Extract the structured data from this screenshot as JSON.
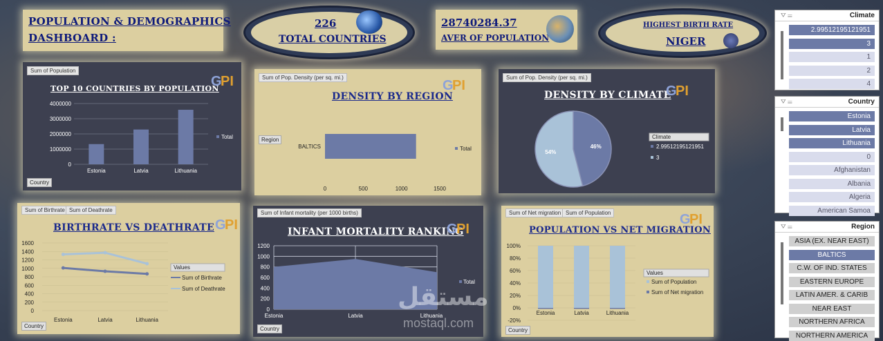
{
  "header": {
    "title_line1": "POPULATION & DEMOGRAPHICS",
    "title_line2": "DASHBOARD :",
    "total_countries_value": "226",
    "total_countries_label": "TOTAL COUNTRIES",
    "avg_population_value": "28740284.37",
    "avg_population_label": "AVER OF POPULATION",
    "highest_birth_label": "HIGHEST BIRTH RATE",
    "highest_birth_value": "NIGER"
  },
  "panels": {
    "top10": {
      "tag": "Sum of Population",
      "title": "TOP 10 COUNTRIES BY POPULATION",
      "filter": "Country"
    },
    "density_region": {
      "tag": "Sum of Pop. Density (per sq. mi.)",
      "title": "DENSITY BY REGION",
      "filter": "Region"
    },
    "density_climate": {
      "tag": "Sum of Pop. Density (per sq. mi.)",
      "title": "DENSITY BY CLIMATE",
      "filter": "Climate"
    },
    "birth_death": {
      "tag1": "Sum of Birthrate",
      "tag2": "Sum of Deathrate",
      "title": "BIRTHRATE VS DEATHRATE",
      "legend_title": "Values",
      "filter": "Country"
    },
    "infant": {
      "tag": "Sum of Infant mortality (per 1000 births)",
      "title": "INFANT MORTALITY RANKING",
      "filter": "Country"
    },
    "migration": {
      "tag1": "Sum of Net migration",
      "tag2": "Sum of Population",
      "title": "POPULATION VS NET MIGRATION",
      "legend_title": "Values",
      "filter": "Country"
    }
  },
  "logo_text": "Global Population Insights",
  "colors": {
    "panel_light": "#dccfa0",
    "panel_dark": "#3d4050",
    "series": "#6c7aa6",
    "series_light": "#a9c2d8",
    "title_blue": "#1b2a8c"
  },
  "chart_data": [
    {
      "id": "top10",
      "type": "bar",
      "categories": [
        "Estonia",
        "Latvia",
        "Lithuania"
      ],
      "series": [
        {
          "name": "Total",
          "values": [
            1330000,
            2290000,
            3590000
          ]
        }
      ],
      "ylim": [
        0,
        4000000
      ],
      "yticks": [
        "4000000",
        "3000000",
        "2000000",
        "1000000",
        "0"
      ],
      "legend": "right"
    },
    {
      "id": "density_region",
      "type": "bar",
      "orientation": "horizontal",
      "categories": [
        "BALTICS"
      ],
      "series": [
        {
          "name": "Total",
          "values": [
            1190
          ]
        }
      ],
      "xlim": [
        0,
        1500
      ],
      "xticks": [
        "0",
        "500",
        "1000",
        "1500"
      ],
      "legend": "right"
    },
    {
      "id": "density_climate",
      "type": "pie",
      "slices": [
        {
          "label": "2.99512195121951",
          "value": 46,
          "pct": "46%"
        },
        {
          "label": "3",
          "value": 54,
          "pct": "54%"
        }
      ],
      "legend": "right"
    },
    {
      "id": "birth_death",
      "type": "line",
      "categories": [
        "Estonia",
        "Latvia",
        "Lithuania"
      ],
      "series": [
        {
          "name": "Sum of Birthrate",
          "values": [
            1010,
            930,
            870
          ]
        },
        {
          "name": "Sum of Deathrate",
          "values": [
            1330,
            1370,
            1110
          ]
        }
      ],
      "ylim": [
        0,
        1600
      ],
      "yticks": [
        "1600",
        "1400",
        "1200",
        "1000",
        "800",
        "600",
        "400",
        "200",
        "0"
      ],
      "legend": "right"
    },
    {
      "id": "infant",
      "type": "area",
      "categories": [
        "Estonia",
        "Latvia",
        "Lithuania"
      ],
      "series": [
        {
          "name": "Total",
          "values": [
            800,
            950,
            700
          ]
        }
      ],
      "ylim": [
        0,
        1200
      ],
      "yticks": [
        "1200",
        "1000",
        "800",
        "600",
        "400",
        "200",
        "0"
      ],
      "legend": "right"
    },
    {
      "id": "migration",
      "type": "bar",
      "stacked_percent": true,
      "categories": [
        "Estonia",
        "Latvia",
        "Lithuania"
      ],
      "series": [
        {
          "name": "Sum of Population",
          "values": [
            100,
            100,
            100
          ]
        },
        {
          "name": "Sum of Net migration",
          "values": [
            0,
            0,
            0
          ]
        }
      ],
      "ylim": [
        -20,
        100
      ],
      "yticks": [
        "100%",
        "80%",
        "60%",
        "40%",
        "20%",
        "0%",
        "-20%"
      ],
      "legend": "right"
    }
  ],
  "slicers": {
    "climate": {
      "title": "Climate",
      "items": [
        "2.99512195121951",
        "3",
        "1",
        "2",
        "4"
      ],
      "selected": [
        true,
        true,
        false,
        false,
        false
      ]
    },
    "country": {
      "title": "Country",
      "items": [
        "Estonia",
        "Latvia",
        "Lithuania",
        "0",
        "Afghanistan",
        "Albania",
        "Algeria",
        "American Samoa"
      ],
      "selected": [
        true,
        true,
        true,
        false,
        false,
        false,
        false,
        false
      ]
    },
    "region": {
      "title": "Region",
      "items": [
        "ASIA (EX. NEAR EAST)",
        "BALTICS",
        "C.W. OF IND. STATES",
        "EASTERN EUROPE",
        "LATIN AMER. & CARIB",
        "NEAR EAST",
        "NORTHERN AFRICA",
        "NORTHERN AMERICA"
      ],
      "selected": [
        false,
        true,
        false,
        false,
        false,
        false,
        false,
        false
      ]
    }
  },
  "watermark": {
    "arabic": "مستقل",
    "latin": "mostaql.com"
  }
}
